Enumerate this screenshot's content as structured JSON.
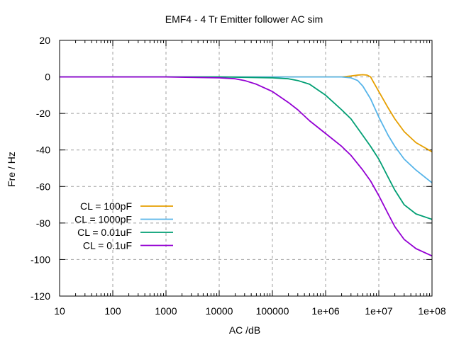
{
  "chart_data": {
    "type": "line",
    "title": "EMF4 - 4 Tr Emitter follower AC sim",
    "xlabel": "AC /dB",
    "ylabel": "Fre / Hz",
    "xscale": "log",
    "xlim": [
      10,
      100000000
    ],
    "ylim": [
      -120,
      20
    ],
    "grid": true,
    "legend_position": "bottom-left",
    "x_ticks": [
      "10",
      "100",
      "1000",
      "10000",
      "100000",
      "1e+06",
      "1e+07",
      "1e+08"
    ],
    "y_ticks": [
      "20",
      "0",
      "-20",
      "-40",
      "-60",
      "-80",
      "-100",
      "-120"
    ],
    "series": [
      {
        "name": "CL = 100pF",
        "color": "#E69F00",
        "x": [
          10,
          100,
          1000,
          10000,
          100000,
          1000000,
          2000000,
          3000000,
          4000000,
          5000000,
          6000000,
          7000000,
          8000000,
          10000000,
          15000000,
          20000000,
          30000000,
          50000000,
          100000000
        ],
        "y": [
          0,
          0,
          0,
          0,
          0,
          0,
          0,
          0.5,
          1,
          1.2,
          1,
          0,
          -3,
          -8,
          -17,
          -23,
          -30,
          -36,
          -41
        ]
      },
      {
        "name": "CL = 1000pF",
        "color": "#56B4E9",
        "x": [
          10,
          100,
          1000,
          10000,
          100000,
          1000000,
          2000000,
          3000000,
          4000000,
          5000000,
          7000000,
          10000000,
          15000000,
          20000000,
          30000000,
          50000000,
          100000000
        ],
        "y": [
          0,
          0,
          0,
          0,
          0,
          0,
          0,
          -0.5,
          -2,
          -5,
          -12,
          -22,
          -32,
          -38,
          -45,
          -51,
          -58
        ]
      },
      {
        "name": "CL = 0.01uF",
        "color": "#009E73",
        "x": [
          10,
          100,
          1000,
          10000,
          100000,
          200000,
          300000,
          500000,
          1000000,
          2000000,
          3000000,
          5000000,
          7000000,
          10000000,
          15000000,
          20000000,
          30000000,
          50000000,
          100000000
        ],
        "y": [
          0,
          0,
          0,
          0,
          -0.5,
          -1,
          -2,
          -4,
          -10,
          -18,
          -23,
          -32,
          -38,
          -45,
          -55,
          -62,
          -70,
          -75,
          -78
        ]
      },
      {
        "name": "CL = 0.1uF",
        "color": "#9400D3",
        "x": [
          10,
          100,
          1000,
          10000,
          20000,
          30000,
          50000,
          100000,
          200000,
          300000,
          500000,
          1000000,
          2000000,
          3000000,
          5000000,
          7000000,
          10000000,
          15000000,
          20000000,
          30000000,
          50000000,
          100000000
        ],
        "y": [
          0,
          0,
          0,
          -0.5,
          -1,
          -2,
          -4,
          -8,
          -14,
          -18,
          -24,
          -31,
          -38,
          -43,
          -51,
          -57,
          -65,
          -75,
          -82,
          -89,
          -94,
          -98
        ]
      }
    ]
  }
}
